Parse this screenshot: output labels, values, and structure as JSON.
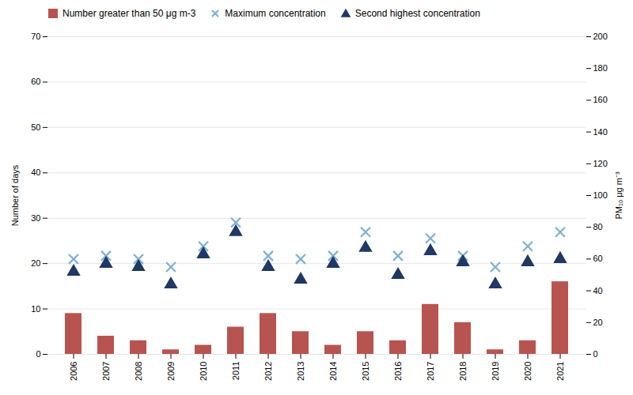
{
  "chart_data": {
    "type": "bar",
    "categories": [
      "2006",
      "2007",
      "2008",
      "2009",
      "2010",
      "2011",
      "2012",
      "2013",
      "2014",
      "2015",
      "2016",
      "2017",
      "2018",
      "2019",
      "2020",
      "2021"
    ],
    "series": [
      {
        "name": "Number greater than 50 μg m-3",
        "type": "bar",
        "color": "#b85450",
        "values": [
          9,
          4,
          3,
          1,
          2,
          6,
          9,
          5,
          2,
          5,
          3,
          11,
          7,
          1,
          3,
          16
        ]
      },
      {
        "name": "Maximum concentration",
        "type": "scatter",
        "marker": "x",
        "color": "#7eb0d5",
        "axis": "y2",
        "values": [
          60,
          62,
          60,
          55,
          68,
          83,
          62,
          60,
          62,
          77,
          62,
          73,
          62,
          55,
          68,
          77
        ]
      },
      {
        "name": "Second highest concentration",
        "type": "scatter",
        "marker": "triangle",
        "color": "#1f3864",
        "axis": "y2",
        "values": [
          52,
          57,
          55,
          44,
          63,
          77,
          55,
          47,
          57,
          67,
          50,
          65,
          58,
          44,
          58,
          60
        ]
      }
    ],
    "ylabel": "Number of days",
    "y2label": "PM₁₀ μg m⁻³",
    "ylim": [
      0,
      70
    ],
    "yticks": [
      0,
      10,
      20,
      30,
      40,
      50,
      60,
      70
    ],
    "y2lim": [
      0,
      200
    ],
    "y2ticks": [
      0,
      20,
      40,
      60,
      80,
      100,
      120,
      140,
      160,
      180,
      200
    ],
    "grid": true,
    "legend": "top"
  }
}
